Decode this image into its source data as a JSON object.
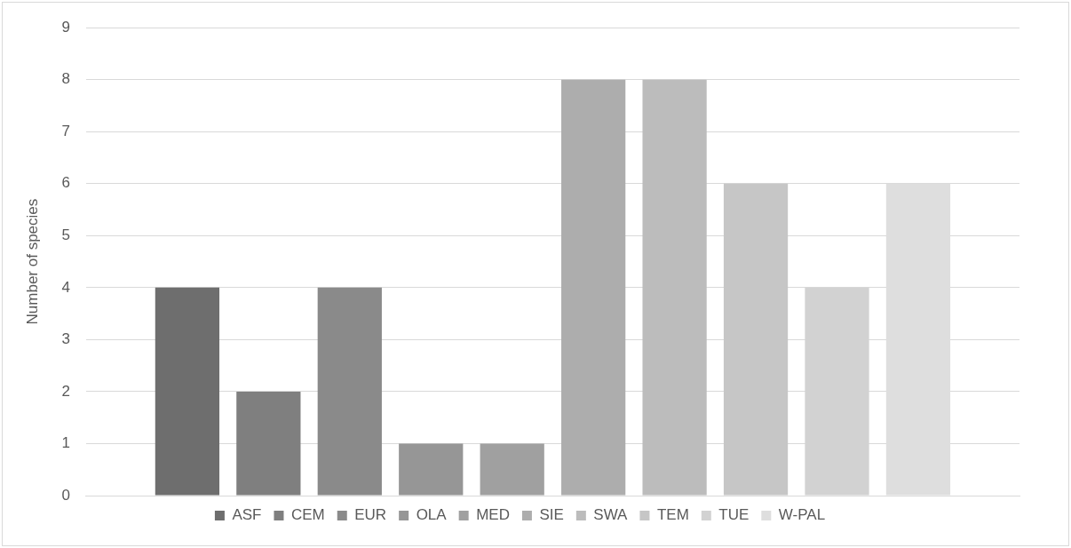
{
  "chart_data": {
    "type": "bar",
    "ylabel": "Number of species",
    "categories": [
      null
    ],
    "series": [
      {
        "name": "ASF",
        "color": "#6e6e6e",
        "values": [
          4
        ]
      },
      {
        "name": "CEM",
        "color": "#7f7f7f",
        "values": [
          2
        ]
      },
      {
        "name": "EUR",
        "color": "#8a8a8a",
        "values": [
          4
        ]
      },
      {
        "name": "OLA",
        "color": "#969696",
        "values": [
          1
        ]
      },
      {
        "name": "MED",
        "color": "#a0a0a0",
        "values": [
          1
        ]
      },
      {
        "name": "SIE",
        "color": "#adadad",
        "values": [
          8
        ]
      },
      {
        "name": "SWA",
        "color": "#bcbcbc",
        "values": [
          8
        ]
      },
      {
        "name": "TEM",
        "color": "#c6c6c6",
        "values": [
          6
        ]
      },
      {
        "name": "TUE",
        "color": "#d2d2d2",
        "values": [
          4
        ]
      },
      {
        "name": "W-PAL",
        "color": "#dedede",
        "values": [
          6
        ]
      }
    ],
    "ylim": [
      0,
      9
    ],
    "yticks": [
      0,
      1,
      2,
      3,
      4,
      5,
      6,
      7,
      8,
      9
    ],
    "grid": "y",
    "legend": "bottom",
    "tick_labels": "y"
  }
}
